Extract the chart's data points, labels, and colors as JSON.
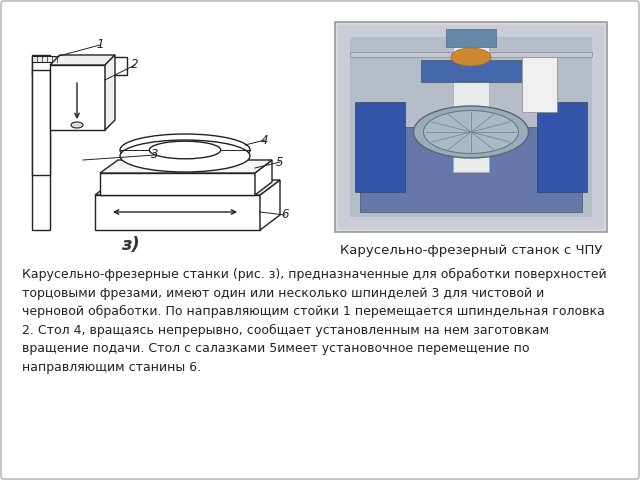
{
  "bg_color": "#ffffff",
  "border_color": "#cccccc",
  "label_z": "з)",
  "caption_right": "Карусельно-фрезерный станок с ЧПУ",
  "body_text": "Карусельно-фрезерные станки (рис. з), предназначенные для обработки поверхностей\nторцовыми фрезами, имеют один или несколько шпинделей 3 для чистовой и\nчерновой обработки. По направляющим стойки 1 перемещается шпиндельная головка\n2. Стол 4, вращаясь непрерывно, сообщает установленным на нем заготовкам\nвращение подачи. Стол с салазками 5имеет установочное перемещение по\nнаправляющим станины 6.",
  "figsize": [
    6.4,
    4.8
  ],
  "dpi": 100
}
